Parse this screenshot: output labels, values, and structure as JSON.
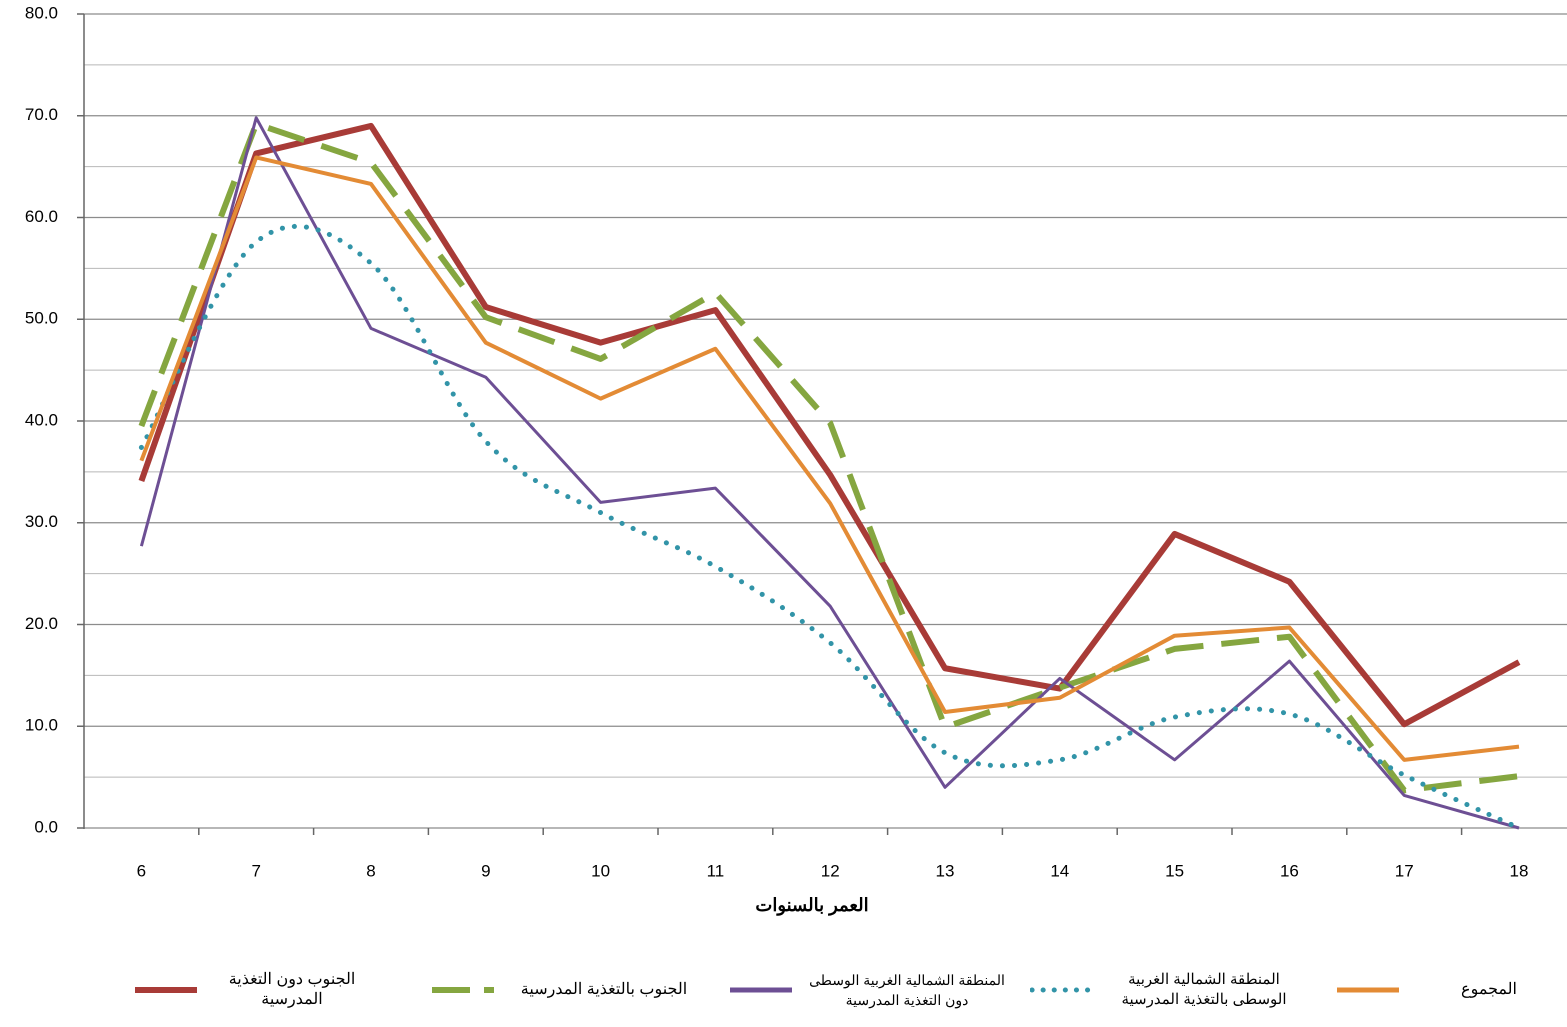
{
  "chart_data": {
    "type": "line",
    "x_label": "العمر بالسنوات",
    "categories": [
      6,
      7,
      8,
      9,
      10,
      11,
      12,
      13,
      14,
      15,
      16,
      17,
      18
    ],
    "ylim": [
      0,
      80
    ],
    "yticks": [
      {
        "value": 0,
        "label": "0.0"
      },
      {
        "value": 10,
        "label": "10.0"
      },
      {
        "value": 20,
        "label": "20.0"
      },
      {
        "value": 30,
        "label": "30.0"
      },
      {
        "value": 40,
        "label": "40.0"
      },
      {
        "value": 50,
        "label": "50.0"
      },
      {
        "value": 60,
        "label": "60.0"
      },
      {
        "value": 70,
        "label": "70.0"
      },
      {
        "value": 80,
        "label": "80.0"
      }
    ],
    "minor_yticks": [
      5,
      15,
      25,
      35,
      45,
      55,
      65,
      75
    ],
    "grid": true,
    "legend": "bottom",
    "series": [
      {
        "name": "الجنوب دون التغذية المدرسية",
        "color": "#a83b37",
        "style": "solid",
        "width": 6,
        "values": [
          34.1,
          66.3,
          69.0,
          51.2,
          47.7,
          50.9,
          34.7,
          15.7,
          13.7,
          28.9,
          24.2,
          10.2,
          16.3
        ]
      },
      {
        "name": "الجنوب بالتغذية المدرسية",
        "color": "#85a640",
        "style": "dash",
        "width": 6,
        "values": [
          39.5,
          69.2,
          65.4,
          50.2,
          46.1,
          52.6,
          39.8,
          9.9,
          13.8,
          17.6,
          18.8,
          3.7,
          5.1
        ]
      },
      {
        "name": "المنطقة الشمالية الغربية الوسطى دون التغذية المدرسية",
        "color": "#6d4f94",
        "style": "solid",
        "width": 3,
        "values": [
          27.7,
          69.8,
          49.1,
          44.3,
          32.0,
          33.4,
          21.8,
          4.0,
          14.7,
          6.7,
          16.4,
          3.2,
          0
        ]
      },
      {
        "name": "المنطقة الشمالية الغربية الوسطى بالتغذية المدرسية",
        "color": "#3294a8",
        "style": "dot",
        "width": 5,
        "values": [
          37.4,
          57.6,
          55.5,
          38.0,
          31.0,
          25.7,
          18.2,
          7.4,
          6.7,
          10.9,
          11.2,
          5.2,
          0
        ]
      },
      {
        "name": "المجموع",
        "color": "#e38b35",
        "style": "solid",
        "width": 4,
        "values": [
          36.1,
          65.9,
          63.3,
          47.7,
          42.2,
          47.1,
          31.9,
          11.4,
          12.8,
          18.9,
          19.7,
          6.7,
          8.0
        ]
      }
    ]
  }
}
